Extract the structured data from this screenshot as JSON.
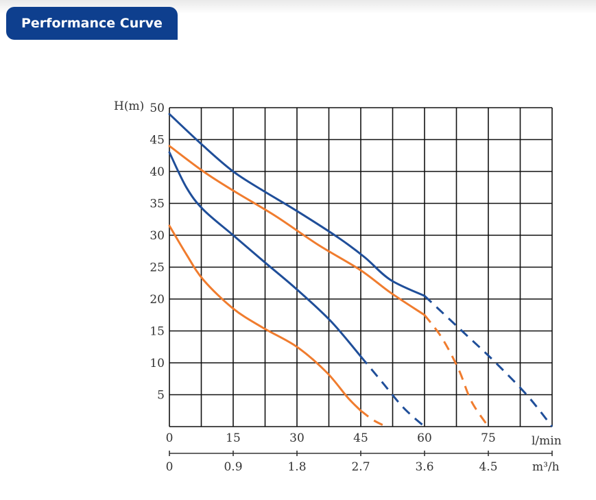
{
  "header": {
    "title": "Performance Curve"
  },
  "colors": {
    "header_bg": "#0e3f8e",
    "blue_curve": "#1f4e99",
    "orange_curve": "#f07c2e",
    "grid": "#111111"
  },
  "chart_data": {
    "type": "line",
    "title": "",
    "ylabel": "H(m)",
    "ylim": [
      0,
      50
    ],
    "yticks": [
      "5",
      "10",
      "15",
      "20",
      "25",
      "30",
      "35",
      "40",
      "45",
      "50"
    ],
    "xlim": [
      0,
      90
    ],
    "x_axis_primary": {
      "unit": "l/min",
      "ticks": [
        0,
        15,
        30,
        45,
        60,
        75
      ],
      "tick_labels": [
        "0",
        "15",
        "30",
        "45",
        "60",
        "75"
      ]
    },
    "x_axis_secondary": {
      "unit": "m³/h",
      "tick_labels": [
        "0",
        "0.9",
        "1.8",
        "2.7",
        "3.6",
        "4.5"
      ]
    },
    "grid": true,
    "legend": "none",
    "series": [
      {
        "color": "#1f4e99",
        "solid": [
          [
            0,
            49
          ],
          [
            8,
            44
          ],
          [
            15,
            40
          ],
          [
            22,
            37
          ],
          [
            30,
            33.8
          ],
          [
            40,
            29.5
          ],
          [
            46,
            26.5
          ],
          [
            52,
            23
          ],
          [
            60,
            20.5
          ]
        ],
        "dashed": [
          [
            60,
            20.5
          ],
          [
            68,
            15.5
          ],
          [
            76,
            10.5
          ],
          [
            84,
            5
          ],
          [
            90,
            0
          ]
        ]
      },
      {
        "color": "#1f4e99",
        "solid": [
          [
            0,
            43
          ],
          [
            4,
            37.5
          ],
          [
            8,
            34
          ],
          [
            15,
            30
          ],
          [
            22,
            26
          ],
          [
            30,
            21.5
          ],
          [
            38,
            16.5
          ],
          [
            45,
            11
          ]
        ],
        "dashed": [
          [
            45,
            11
          ],
          [
            50,
            7
          ],
          [
            55,
            3
          ],
          [
            60,
            0
          ]
        ]
      },
      {
        "color": "#f07c2e",
        "solid": [
          [
            0,
            44
          ],
          [
            8,
            40
          ],
          [
            15,
            37
          ],
          [
            25,
            33
          ],
          [
            35,
            28.5
          ],
          [
            45,
            24.5
          ],
          [
            52,
            21
          ],
          [
            60,
            17.5
          ]
        ],
        "dashed": [
          [
            60,
            17.5
          ],
          [
            64,
            14
          ],
          [
            68,
            9
          ],
          [
            71,
            4
          ],
          [
            75,
            0
          ]
        ]
      },
      {
        "color": "#f07c2e",
        "solid": [
          [
            0,
            31.5
          ],
          [
            4,
            27
          ],
          [
            8,
            23
          ],
          [
            15,
            18.5
          ],
          [
            22,
            15.5
          ],
          [
            30,
            12.5
          ],
          [
            37,
            8.5
          ],
          [
            42,
            4.5
          ],
          [
            45,
            2.5
          ]
        ],
        "dashed": [
          [
            45,
            2.5
          ],
          [
            48,
            1
          ],
          [
            51,
            0
          ]
        ]
      }
    ]
  }
}
